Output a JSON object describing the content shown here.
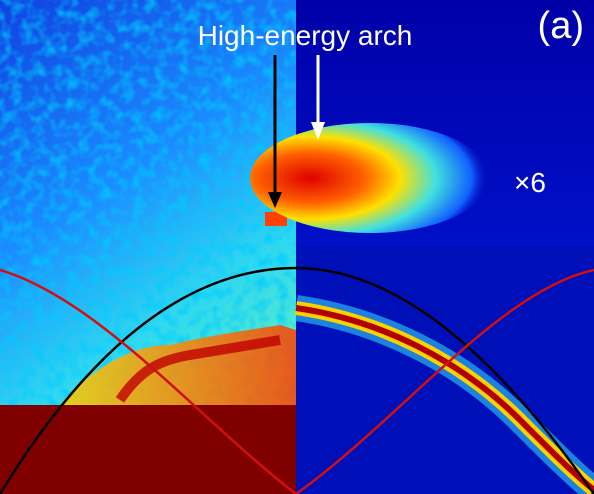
{
  "labels": {
    "annotation": "High-energy arch",
    "panel": "(a)",
    "scale": "×6"
  }
}
